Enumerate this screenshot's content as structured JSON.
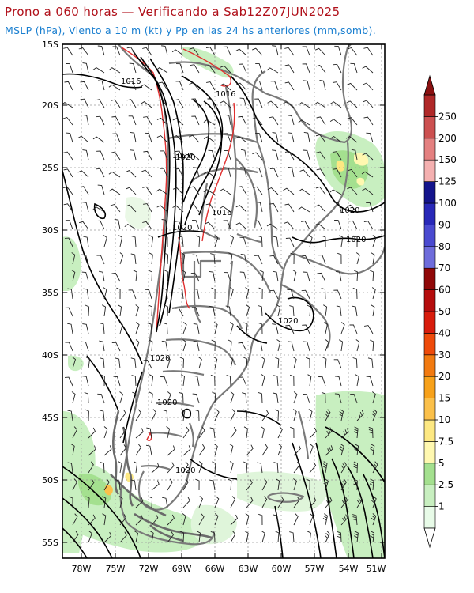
{
  "title": "Prono a 060 horas — Verificando a Sab12Z07JUN2025",
  "subtitle": "MSLP (hPa), Viento a 10 m (kt) y Pp en las 24 hs anteriores (mm,somb).",
  "lat_ticks": [
    "15S",
    "20S",
    "25S",
    "30S",
    "35S",
    "40S",
    "45S",
    "50S",
    "55S"
  ],
  "lon_ticks": [
    "78W",
    "75W",
    "72W",
    "69W",
    "66W",
    "63W",
    "60W",
    "57W",
    "54W",
    "51W"
  ],
  "isobar_labels": [
    "1016",
    "1016",
    "1016",
    "1020",
    "1020",
    "1020",
    "1020",
    "1020",
    "1020",
    "1020",
    "1020",
    "1020"
  ],
  "colorbar": {
    "labels": [
      "1",
      "2.5",
      "5",
      "7.5",
      "10",
      "15",
      "20",
      "30",
      "40",
      "50",
      "60",
      "70",
      "80",
      "90",
      "100",
      "125",
      "150",
      "200",
      "250"
    ],
    "colors": [
      "#e8fbe8",
      "#c8efc0",
      "#a4e08f",
      "#fff8b0",
      "#fde882",
      "#fbc04a",
      "#f7a11a",
      "#f27a10",
      "#ee4a0a",
      "#d81c0c",
      "#b50d0d",
      "#900808",
      "#6e6cdb",
      "#4a4ad0",
      "#2828b8",
      "#14148c",
      "#f4b0b0",
      "#e48080",
      "#cc5050",
      "#b02828",
      "#8a1010"
    ],
    "colors_note": ""
  },
  "colors": {
    "title": "#b0101a",
    "subtitle": "#1a7fd0",
    "land_outline": "#7a7a7a",
    "isobar": "#000000",
    "isobar_high": "#e03030",
    "precip_light": "#c8efc0"
  }
}
